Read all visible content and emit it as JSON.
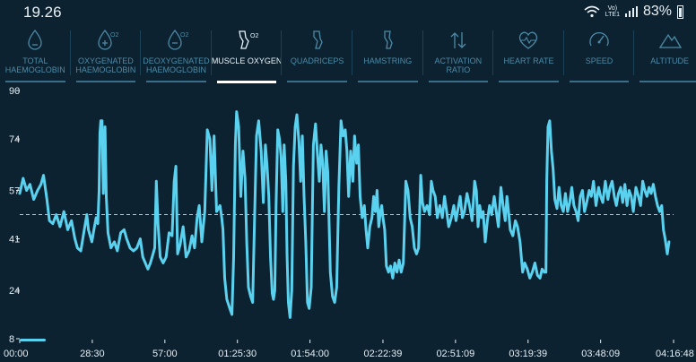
{
  "status_bar": {
    "time": "19.26",
    "network_top": "Vo)",
    "network_bottom": "LTE1",
    "battery": "83%"
  },
  "tabs": [
    {
      "label": "TOTAL HAEMOGLOBIN",
      "icon": "drop-icon",
      "active": false
    },
    {
      "label": "OXYGENATED HAEMOGLOBIN",
      "icon": "drop-o2-plus-icon",
      "active": false
    },
    {
      "label": "DEOXYGENATED HAEMOGLOBIN",
      "icon": "drop-o2-minus-icon",
      "active": false
    },
    {
      "label": "MUSCLE OXYGEN",
      "icon": "muscle-o2-icon",
      "active": true
    },
    {
      "label": "QUADRICEPS",
      "icon": "quadriceps-icon",
      "active": false
    },
    {
      "label": "HAMSTRING",
      "icon": "hamstring-icon",
      "active": false
    },
    {
      "label": "ACTIVATION RATIO",
      "icon": "activation-ratio-icon",
      "active": false
    },
    {
      "label": "HEART RATE",
      "icon": "heart-icon",
      "active": false
    },
    {
      "label": "SPEED",
      "icon": "speedometer-icon",
      "active": false
    },
    {
      "label": "ALTITUDE",
      "icon": "mountain-icon",
      "active": false
    }
  ],
  "colors": {
    "background": "#0c2230",
    "line": "#5ad2ef",
    "active_tab": "#ffffff",
    "inactive_tab": "#4d8aa6"
  },
  "chart_data": {
    "type": "line",
    "title": "",
    "xlabel": "",
    "ylabel": "",
    "y_ticks": [
      90,
      74,
      57,
      41,
      24,
      8
    ],
    "ylim": [
      8,
      90
    ],
    "x_ticks": [
      "00:00",
      "28:30",
      "57:00",
      "01:25:30",
      "01:54:00",
      "02:22:39",
      "02:51:09",
      "03:19:39",
      "03:48:09",
      "04:16:48"
    ],
    "x_tick_seconds": [
      0,
      1710,
      3420,
      5130,
      6840,
      8559,
      10269,
      11979,
      13689,
      15408
    ],
    "xlim": [
      0,
      15408
    ],
    "average_line": 49,
    "grid": false,
    "series": [
      {
        "name": "",
        "color": "#5ad2ef",
        "points": [
          [
            0,
            56
          ],
          [
            80,
            61
          ],
          [
            160,
            57
          ],
          [
            240,
            59
          ],
          [
            330,
            54
          ],
          [
            420,
            57
          ],
          [
            500,
            59
          ],
          [
            560,
            62
          ],
          [
            640,
            54
          ],
          [
            700,
            47
          ],
          [
            780,
            46
          ],
          [
            860,
            49
          ],
          [
            950,
            45
          ],
          [
            1040,
            50
          ],
          [
            1130,
            44
          ],
          [
            1220,
            47
          ],
          [
            1300,
            41
          ],
          [
            1360,
            38
          ],
          [
            1440,
            37
          ],
          [
            1510,
            43
          ],
          [
            1580,
            49
          ],
          [
            1620,
            44
          ],
          [
            1700,
            40
          ],
          [
            1760,
            45
          ],
          [
            1800,
            48
          ],
          [
            1840,
            46
          ],
          [
            1870,
            57
          ],
          [
            1890,
            76
          ],
          [
            1910,
            80
          ],
          [
            1940,
            80
          ],
          [
            1970,
            56
          ],
          [
            2010,
            78
          ],
          [
            2040,
            55
          ],
          [
            2080,
            43
          ],
          [
            2150,
            38
          ],
          [
            2230,
            40
          ],
          [
            2300,
            37
          ],
          [
            2380,
            43
          ],
          [
            2460,
            44
          ],
          [
            2520,
            41
          ],
          [
            2600,
            38
          ],
          [
            2680,
            37
          ],
          [
            2760,
            38
          ],
          [
            2840,
            41
          ],
          [
            2900,
            35
          ],
          [
            2960,
            33
          ],
          [
            3020,
            31
          ],
          [
            3080,
            33
          ],
          [
            3140,
            36
          ],
          [
            3180,
            38
          ],
          [
            3220,
            60
          ],
          [
            3260,
            46
          ],
          [
            3310,
            35
          ],
          [
            3380,
            33
          ],
          [
            3450,
            35
          ],
          [
            3520,
            43
          ],
          [
            3590,
            42
          ],
          [
            3640,
            60
          ],
          [
            3680,
            65
          ],
          [
            3720,
            36
          ],
          [
            3780,
            39
          ],
          [
            3850,
            45
          ],
          [
            3920,
            35
          ],
          [
            3990,
            37
          ],
          [
            4060,
            42
          ],
          [
            4120,
            38
          ],
          [
            4180,
            48
          ],
          [
            4230,
            52
          ],
          [
            4290,
            40
          ],
          [
            4360,
            50
          ],
          [
            4420,
            77
          ],
          [
            4480,
            74
          ],
          [
            4530,
            57
          ],
          [
            4580,
            75
          ],
          [
            4640,
            50
          ],
          [
            4720,
            52
          ],
          [
            4760,
            48
          ],
          [
            4790,
            44
          ],
          [
            4830,
            28
          ],
          [
            4880,
            21
          ],
          [
            4950,
            18
          ],
          [
            5000,
            16
          ],
          [
            5040,
            35
          ],
          [
            5080,
            72
          ],
          [
            5110,
            83
          ],
          [
            5160,
            78
          ],
          [
            5210,
            55
          ],
          [
            5260,
            70
          ],
          [
            5310,
            61
          ],
          [
            5350,
            40
          ],
          [
            5390,
            25
          ],
          [
            5440,
            22
          ],
          [
            5490,
            20
          ],
          [
            5530,
            45
          ],
          [
            5580,
            75
          ],
          [
            5630,
            80
          ],
          [
            5690,
            70
          ],
          [
            5740,
            53
          ],
          [
            5790,
            72
          ],
          [
            5830,
            65
          ],
          [
            5870,
            55
          ],
          [
            5910,
            35
          ],
          [
            5950,
            23
          ],
          [
            5980,
            21
          ],
          [
            6010,
            24
          ],
          [
            6040,
            52
          ],
          [
            6080,
            77
          ],
          [
            6120,
            74
          ],
          [
            6160,
            68
          ],
          [
            6200,
            50
          ],
          [
            6230,
            72
          ],
          [
            6270,
            60
          ],
          [
            6300,
            35
          ],
          [
            6330,
            20
          ],
          [
            6370,
            15
          ],
          [
            6410,
            24
          ],
          [
            6450,
            65
          ],
          [
            6490,
            78
          ],
          [
            6530,
            82
          ],
          [
            6580,
            73
          ],
          [
            6620,
            60
          ],
          [
            6660,
            75
          ],
          [
            6700,
            55
          ],
          [
            6740,
            40
          ],
          [
            6780,
            20
          ],
          [
            6820,
            18
          ],
          [
            6870,
            25
          ],
          [
            6920,
            72
          ],
          [
            6970,
            79
          ],
          [
            7010,
            70
          ],
          [
            7060,
            60
          ],
          [
            7100,
            72
          ],
          [
            7140,
            66
          ],
          [
            7180,
            50
          ],
          [
            7220,
            70
          ],
          [
            7260,
            63
          ],
          [
            7320,
            30
          ],
          [
            7370,
            22
          ],
          [
            7420,
            20
          ],
          [
            7470,
            25
          ],
          [
            7520,
            58
          ],
          [
            7570,
            80
          ],
          [
            7620,
            75
          ],
          [
            7670,
            77
          ],
          [
            7710,
            70
          ],
          [
            7750,
            55
          ],
          [
            7800,
            70
          ],
          [
            7850,
            60
          ],
          [
            7890,
            75
          ],
          [
            7940,
            66
          ],
          [
            7980,
            72
          ],
          [
            8020,
            55
          ],
          [
            8070,
            48
          ],
          [
            8120,
            52
          ],
          [
            8160,
            44
          ],
          [
            8200,
            38
          ],
          [
            8250,
            45
          ],
          [
            8300,
            48
          ],
          [
            8340,
            55
          ],
          [
            8380,
            50
          ],
          [
            8420,
            57
          ],
          [
            8460,
            45
          ],
          [
            8500,
            50
          ],
          [
            8530,
            52
          ],
          [
            8560,
            48
          ],
          [
            8600,
            44
          ],
          [
            8640,
            32
          ],
          [
            8690,
            30
          ],
          [
            8740,
            32
          ],
          [
            8790,
            28
          ],
          [
            8840,
            33
          ],
          [
            8890,
            30
          ],
          [
            8940,
            34
          ],
          [
            8990,
            30
          ],
          [
            9040,
            33
          ],
          [
            9100,
            60
          ],
          [
            9150,
            57
          ],
          [
            9200,
            48
          ],
          [
            9250,
            45
          ],
          [
            9300,
            38
          ],
          [
            9350,
            36
          ],
          [
            9400,
            38
          ],
          [
            9450,
            62
          ],
          [
            9490,
            53
          ],
          [
            9540,
            50
          ],
          [
            9600,
            52
          ],
          [
            9660,
            49
          ],
          [
            9700,
            60
          ],
          [
            9740,
            57
          ],
          [
            9790,
            55
          ],
          [
            9840,
            48
          ],
          [
            9900,
            52
          ],
          [
            9960,
            48
          ],
          [
            10010,
            55
          ],
          [
            10060,
            50
          ],
          [
            10110,
            45
          ],
          [
            10170,
            48
          ],
          [
            10230,
            52
          ],
          [
            10280,
            47
          ],
          [
            10330,
            51
          ],
          [
            10380,
            55
          ],
          [
            10430,
            48
          ],
          [
            10480,
            50
          ],
          [
            10540,
            56
          ],
          [
            10600,
            52
          ],
          [
            10660,
            47
          ],
          [
            10720,
            60
          ],
          [
            10760,
            57
          ],
          [
            10800,
            45
          ],
          [
            10840,
            52
          ],
          [
            10880,
            48
          ],
          [
            10920,
            50
          ],
          [
            10970,
            40
          ],
          [
            11020,
            47
          ],
          [
            11070,
            52
          ],
          [
            11120,
            49
          ],
          [
            11180,
            55
          ],
          [
            11230,
            50
          ],
          [
            11280,
            45
          ],
          [
            11340,
            58
          ],
          [
            11390,
            52
          ],
          [
            11440,
            47
          ],
          [
            11480,
            55
          ],
          [
            11520,
            50
          ],
          [
            11560,
            44
          ],
          [
            11620,
            42
          ],
          [
            11680,
            47
          ],
          [
            11730,
            45
          ],
          [
            11790,
            40
          ],
          [
            11850,
            30
          ],
          [
            11900,
            33
          ],
          [
            11960,
            31
          ],
          [
            12020,
            28
          ],
          [
            12080,
            30
          ],
          [
            12140,
            33
          ],
          [
            12200,
            29
          ],
          [
            12260,
            28
          ],
          [
            12310,
            31
          ],
          [
            12360,
            30
          ],
          [
            12400,
            30
          ],
          [
            12420,
            60
          ],
          [
            12450,
            78
          ],
          [
            12490,
            80
          ],
          [
            12530,
            70
          ],
          [
            12570,
            64
          ],
          [
            12610,
            54
          ],
          [
            12660,
            51
          ],
          [
            12710,
            58
          ],
          [
            12760,
            52
          ],
          [
            12810,
            50
          ],
          [
            12860,
            56
          ],
          [
            12910,
            50
          ],
          [
            12960,
            53
          ],
          [
            13010,
            58
          ],
          [
            13060,
            52
          ],
          [
            13110,
            50
          ],
          [
            13160,
            47
          ],
          [
            13210,
            55
          ],
          [
            13260,
            57
          ],
          [
            13310,
            50
          ],
          [
            13360,
            53
          ],
          [
            13420,
            57
          ],
          [
            13470,
            55
          ],
          [
            13520,
            60
          ],
          [
            13580,
            52
          ],
          [
            13640,
            58
          ],
          [
            13690,
            55
          ],
          [
            13740,
            53
          ],
          [
            13800,
            60
          ],
          [
            13860,
            54
          ],
          [
            13910,
            58
          ],
          [
            13960,
            60
          ],
          [
            14010,
            55
          ],
          [
            14060,
            52
          ],
          [
            14110,
            56
          ],
          [
            14160,
            58
          ],
          [
            14210,
            53
          ],
          [
            14260,
            59
          ],
          [
            14310,
            52
          ],
          [
            14360,
            57
          ],
          [
            14410,
            55
          ],
          [
            14460,
            50
          ],
          [
            14520,
            58
          ],
          [
            14580,
            55
          ],
          [
            14630,
            52
          ],
          [
            14680,
            60
          ],
          [
            14730,
            57
          ],
          [
            14780,
            55
          ],
          [
            14830,
            58
          ],
          [
            14880,
            56
          ],
          [
            14930,
            59
          ],
          [
            14980,
            55
          ],
          [
            15030,
            52
          ],
          [
            15080,
            50
          ],
          [
            15130,
            52
          ],
          [
            15170,
            44
          ],
          [
            15210,
            41
          ],
          [
            15260,
            36
          ],
          [
            15300,
            40
          ]
        ]
      }
    ]
  }
}
